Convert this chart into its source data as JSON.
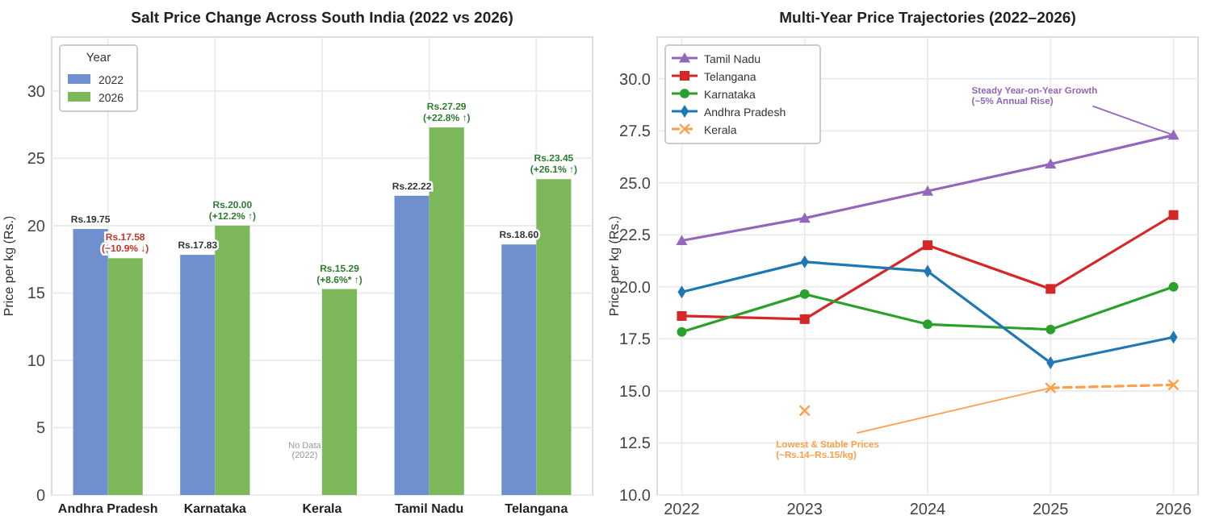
{
  "chart_data": [
    {
      "type": "bar",
      "title": "Salt Price Change Across South India (2022 vs 2026)",
      "ylabel": "Price per kg (Rs.)",
      "legend_title": "Year",
      "categories": [
        "Andhra Pradesh",
        "Karnataka",
        "Kerala",
        "Tamil Nadu",
        "Telangana"
      ],
      "series": [
        {
          "name": "2022",
          "color": "#6f8fcf",
          "values": [
            19.75,
            17.83,
            null,
            22.22,
            18.6
          ],
          "value_labels": [
            "Rs.19.75",
            "Rs.17.83",
            null,
            "Rs.22.22",
            "Rs.18.60"
          ]
        },
        {
          "name": "2026",
          "color": "#7cb85a",
          "values": [
            17.58,
            20.0,
            15.29,
            27.29,
            23.45
          ],
          "value_labels": [
            "Rs.17.58",
            "Rs.20.00",
            "Rs.15.29",
            "Rs.27.29",
            "Rs.23.45"
          ]
        }
      ],
      "ylim": [
        0,
        34
      ],
      "yticks": [
        0,
        5,
        10,
        15,
        20,
        25,
        30
      ],
      "grid": true,
      "legend": "top left",
      "annotations": [
        {
          "text": "No Data\n(2022)",
          "x": "Kerala",
          "y": 3.5
        },
        {
          "text": "(−10.9% ↓)",
          "x": "Andhra Pradesh",
          "y": 17.58
        },
        {
          "text": "(+12.2% ↑)",
          "x": "Karnataka",
          "y": 20.0
        },
        {
          "text": "(+8.6%* ↑)",
          "x": "Kerala",
          "y": 15.29
        },
        {
          "text": "(+22.8% ↑)",
          "x": "Tamil Nadu",
          "y": 27.29
        },
        {
          "text": "(+26.1% ↑)",
          "x": "Telangana",
          "y": 23.45
        }
      ]
    },
    {
      "type": "line",
      "title": "Multi-Year Price Trajectories (2022–2026)",
      "ylabel": "Price per kg (Rs.)",
      "x": [
        2022,
        2023,
        2024,
        2025,
        2026
      ],
      "series": [
        {
          "name": "Tamil Nadu",
          "color": "#9467bd",
          "marker": "triangle",
          "values": [
            22.22,
            23.3,
            24.6,
            25.9,
            27.29
          ]
        },
        {
          "name": "Telangana",
          "color": "#d62728",
          "marker": "square",
          "values": [
            18.6,
            18.45,
            22.0,
            19.9,
            23.45
          ]
        },
        {
          "name": "Karnataka",
          "color": "#2ca02c",
          "marker": "circle",
          "values": [
            17.83,
            19.65,
            18.2,
            17.95,
            20.0
          ]
        },
        {
          "name": "Andhra Pradesh",
          "color": "#1f77b4",
          "marker": "diamond",
          "values": [
            19.75,
            21.2,
            20.75,
            16.35,
            17.58
          ]
        },
        {
          "name": "Kerala",
          "color": "#ff9f4a",
          "marker": "cross",
          "line_style": "dashed",
          "values": [
            null,
            14.05,
            null,
            15.15,
            15.29
          ]
        }
      ],
      "xlim": [
        2021.8,
        2026.2
      ],
      "xticks": [
        2022,
        2023,
        2024,
        2025,
        2026
      ],
      "ylim": [
        10,
        32
      ],
      "yticks": [
        {
          "value": 10,
          "label": "10.0"
        },
        {
          "value": 12.5,
          "label": "12.5"
        },
        {
          "value": 15,
          "label": "15.0"
        },
        {
          "value": 17.5,
          "label": "17.5"
        },
        {
          "value": 20,
          "label": "20.0"
        },
        {
          "value": 22.5,
          "label": "22.5"
        },
        {
          "value": 25,
          "label": "25.0"
        },
        {
          "value": 27.5,
          "label": "27.5"
        },
        {
          "value": 30,
          "label": "30.0"
        }
      ],
      "grid": true,
      "legend": "top left",
      "annotations": [
        {
          "text": "Steady Year-on-Year Growth\n(~5% Annual Rise)",
          "x": 2026,
          "y": 27.29
        },
        {
          "text": "Lowest & Stable Prices\n(~Rs.14–Rs.15/kg)",
          "x": 2025,
          "y": 15.15
        }
      ]
    }
  ]
}
